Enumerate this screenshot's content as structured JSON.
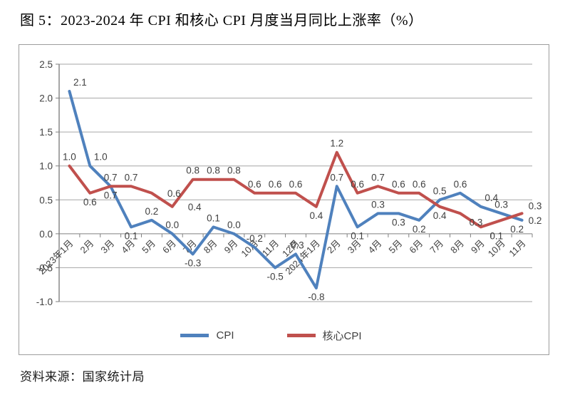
{
  "title": "图 5：2023-2024 年 CPI 和核心 CPI 月度当月同比上涨率（%）",
  "source": "资料来源：国家统计局",
  "colors": {
    "cpi_line": "#4F81BD",
    "core_cpi_line": "#C0504D",
    "gridline": "#A6A6A6",
    "axis_line": "#808080",
    "label_text": "#404040",
    "title_text": "#000000"
  },
  "chart_data": {
    "type": "line",
    "title": "图 5：2023-2024 年 CPI 和核心 CPI 月度当月同比上涨率（%）",
    "xlabel": "",
    "ylabel": "",
    "ylim": [
      -1.0,
      2.5
    ],
    "ytick_step": 0.5,
    "ytick_labels": [
      "2.5",
      "2.0",
      "1.5",
      "1.0",
      "0.5",
      "0.0",
      "-0.5",
      "-1.0"
    ],
    "grid": true,
    "legend_position": "bottom",
    "categories": [
      "2023年1月",
      "2月",
      "3月",
      "4月",
      "5月",
      "6月",
      "7月",
      "8月",
      "9月",
      "10月",
      "11月",
      "12月",
      "2024年1月",
      "2月",
      "3月",
      "4月",
      "5月",
      "6月",
      "7月",
      "8月",
      "9月",
      "10月",
      "11月"
    ],
    "series": [
      {
        "name": "CPI",
        "color": "#4F81BD",
        "values": [
          2.1,
          1.0,
          0.7,
          0.1,
          0.2,
          0.0,
          -0.3,
          0.1,
          0.0,
          -0.2,
          -0.5,
          -0.3,
          -0.8,
          0.7,
          0.1,
          0.3,
          0.3,
          0.2,
          0.5,
          0.6,
          0.4,
          0.3,
          0.2
        ],
        "label_sides": [
          "above-right",
          "above-right",
          "below",
          "below",
          "above",
          "above",
          "below",
          "above",
          "above",
          "above",
          "below",
          "above",
          "below",
          "above",
          "below",
          "above",
          "below",
          "below",
          "above",
          "above",
          "above-right",
          "above",
          "right"
        ]
      },
      {
        "name": "核心CPI",
        "color": "#C0504D",
        "values": [
          1.0,
          0.6,
          0.7,
          0.7,
          0.6,
          0.4,
          0.8,
          0.8,
          0.8,
          0.6,
          0.6,
          0.6,
          0.4,
          1.2,
          0.6,
          0.7,
          0.6,
          0.6,
          0.4,
          0.3,
          0.1,
          0.2,
          0.3
        ],
        "label_sides": [
          "above",
          "below",
          "above",
          "above",
          "right-far",
          "right-far",
          "above",
          "above",
          "above",
          "above",
          "above",
          "above",
          "below",
          "above",
          "above",
          "above",
          "above",
          "above",
          "below",
          "below-right",
          "below-right",
          "below-right",
          "right-up"
        ]
      }
    ]
  }
}
